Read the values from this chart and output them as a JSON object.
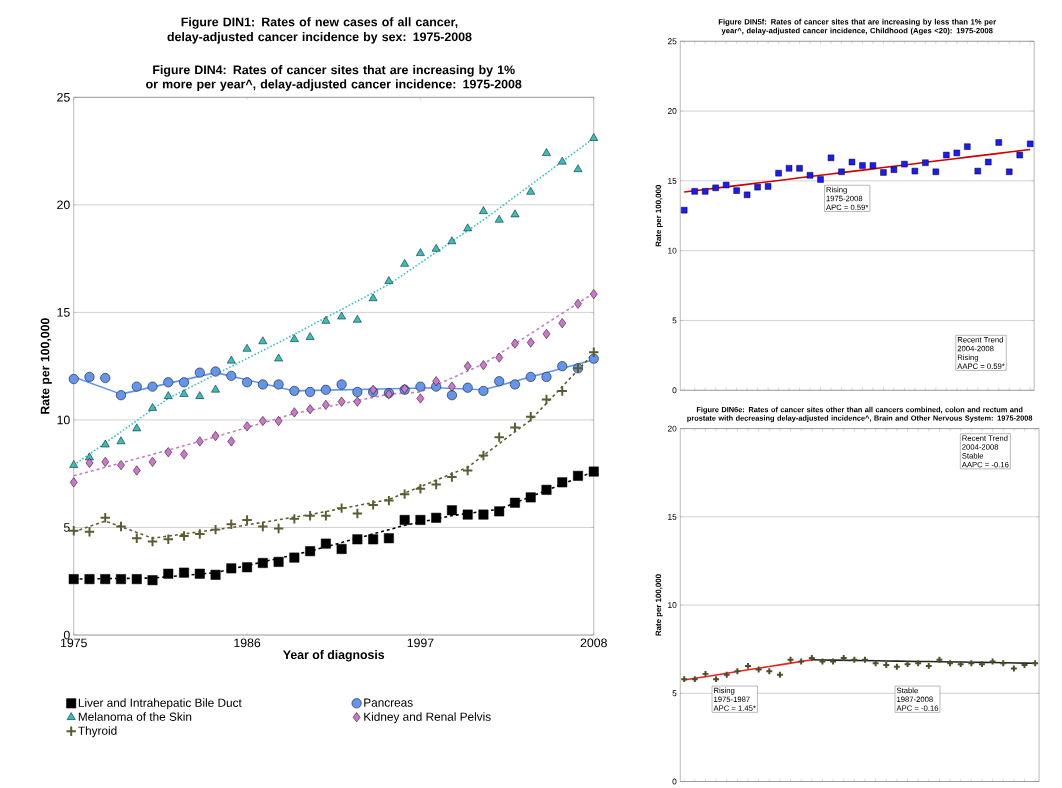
{
  "chart_data": [
    {
      "type": "scatter",
      "title": "Figure DIN4: Rates of cancer sites that are increasing by 1% or more per year^, delay-adjusted cancer incidence: 1975-2008",
      "xlabel": "Year of diagnosis",
      "ylabel": "Rate per 100,000",
      "x": [
        1975,
        1976,
        1977,
        1978,
        1979,
        1980,
        1981,
        1982,
        1983,
        1984,
        1985,
        1986,
        1987,
        1988,
        1989,
        1990,
        1991,
        1992,
        1993,
        1994,
        1995,
        1996,
        1997,
        1998,
        1999,
        2000,
        2001,
        2002,
        2003,
        2004,
        2005,
        2006,
        2007,
        2008
      ],
      "xlim": [
        1975,
        2008
      ],
      "xticks": [
        1975,
        1986,
        1997,
        2008
      ],
      "ylim": [
        0,
        25
      ],
      "yticks": [
        0,
        5,
        10,
        15,
        20,
        25
      ],
      "grid": "y",
      "legend": "bottom",
      "series": [
        {
          "name": "Liver and Intrahepatic Bile Duct",
          "color": "#000000",
          "marker": "square",
          "values": [
            2.6,
            2.6,
            2.6,
            2.6,
            2.6,
            2.55,
            2.85,
            2.9,
            2.85,
            2.8,
            3.1,
            3.15,
            3.35,
            3.4,
            3.6,
            3.9,
            4.25,
            4.0,
            4.45,
            4.45,
            4.5,
            5.35,
            5.35,
            5.45,
            5.8,
            5.6,
            5.6,
            5.75,
            6.15,
            6.4,
            6.75,
            7.1,
            7.4,
            7.6
          ]
        },
        {
          "name": "Pancreas",
          "color": "#6495ed",
          "marker": "circle",
          "values": [
            11.9,
            12.0,
            11.95,
            11.15,
            11.55,
            11.55,
            11.75,
            11.75,
            12.2,
            12.25,
            12.05,
            11.75,
            11.65,
            11.65,
            11.35,
            11.3,
            11.4,
            11.65,
            11.3,
            11.3,
            11.25,
            11.4,
            11.55,
            11.55,
            11.15,
            11.5,
            11.35,
            11.8,
            11.65,
            12.0,
            12.0,
            12.5,
            12.4,
            12.85
          ]
        },
        {
          "name": "Melanoma of the Skin",
          "color": "#33c0c0",
          "marker": "triangle",
          "values": [
            7.9,
            8.25,
            8.85,
            9.0,
            9.6,
            10.55,
            11.1,
            11.2,
            11.1,
            11.4,
            12.75,
            13.3,
            13.65,
            12.85,
            13.75,
            13.85,
            14.6,
            14.8,
            14.65,
            15.65,
            16.45,
            17.25,
            17.75,
            17.95,
            18.3,
            18.9,
            19.7,
            19.3,
            19.55,
            20.6,
            22.4,
            22.0,
            21.65,
            23.1
          ]
        },
        {
          "name": "Kidney and Renal Pelvis",
          "color": "#cc77cc",
          "marker": "diamond",
          "values": [
            7.1,
            8.0,
            8.05,
            7.9,
            7.65,
            8.05,
            8.5,
            8.4,
            9.0,
            9.25,
            9.0,
            9.7,
            9.95,
            9.95,
            10.35,
            10.5,
            10.7,
            10.85,
            10.85,
            11.4,
            11.2,
            11.45,
            11.0,
            11.8,
            11.55,
            12.5,
            12.55,
            12.9,
            13.55,
            13.6,
            14.0,
            14.5,
            15.4,
            15.85
          ]
        },
        {
          "name": "Thyroid",
          "color": "#5c5c30",
          "marker": "cross",
          "values": [
            4.85,
            4.8,
            5.45,
            5.05,
            4.5,
            4.35,
            4.45,
            4.6,
            4.7,
            4.9,
            5.15,
            5.35,
            5.05,
            4.95,
            5.4,
            5.55,
            5.55,
            5.9,
            5.65,
            6.05,
            6.25,
            6.55,
            6.8,
            7.0,
            7.35,
            7.65,
            8.35,
            9.2,
            9.65,
            10.15,
            10.95,
            11.35,
            12.4,
            13.15
          ]
        },
        {
          "type": "line",
          "color": "#000000",
          "line_style": "dashed",
          "x": [
            1975,
            1980,
            1984,
            1990,
            1996,
            1999,
            2002,
            2008
          ],
          "values": [
            2.6,
            2.65,
            2.9,
            3.9,
            5.1,
            5.55,
            5.85,
            7.6
          ]
        },
        {
          "type": "line",
          "color": "#6495ed",
          "line_style": "solid",
          "x": [
            1975,
            1978,
            1984,
            1989,
            1998,
            2001,
            2008
          ],
          "values": [
            12.0,
            11.2,
            12.2,
            11.35,
            11.5,
            11.4,
            12.8
          ]
        },
        {
          "type": "line",
          "color": "#33c0c0",
          "line_style": "dotted",
          "x": [
            1975,
            1981,
            1988,
            1995,
            2001,
            2008
          ],
          "values": [
            7.9,
            11.0,
            13.6,
            16.3,
            19.3,
            23.1
          ]
        },
        {
          "type": "line",
          "color": "#cc77cc",
          "line_style": "dashed",
          "x": [
            1975,
            1983,
            1989,
            1995,
            1997,
            2001,
            2008
          ],
          "values": [
            7.4,
            9.0,
            10.3,
            11.2,
            11.3,
            12.6,
            15.9
          ]
        },
        {
          "type": "line",
          "color": "#5c5c30",
          "line_style": "dashed",
          "x": [
            1975,
            1977,
            1980,
            1985,
            1990,
            1995,
            2000,
            2004,
            2008
          ],
          "values": [
            4.8,
            5.3,
            4.5,
            5.0,
            5.6,
            6.3,
            7.8,
            10.0,
            13.1
          ]
        }
      ]
    },
    {
      "type": "scatter",
      "title": "Figure DIN5f: Rates of cancer sites that are increasing by less than 1% per year^, delay-adjusted cancer incidence, Childhood (Ages <20): 1975-2008",
      "ylabel": "Rate per 100,000",
      "categories": [
        null,
        null,
        null,
        null,
        null,
        null,
        null,
        null,
        null,
        null,
        null,
        null,
        null,
        null,
        null,
        null,
        null,
        null,
        null,
        null,
        null,
        null,
        null,
        null,
        null,
        null,
        null,
        null,
        null,
        null,
        null,
        null,
        null,
        null
      ],
      "ylim": [
        0,
        25
      ],
      "yticks": [
        0,
        5,
        10,
        15,
        20,
        25
      ],
      "grid": "y",
      "series": [
        {
          "color": "#1a1aff",
          "marker": "square",
          "values": [
            12.9,
            14.25,
            14.25,
            14.5,
            14.7,
            14.3,
            14.0,
            14.55,
            14.6,
            15.55,
            15.9,
            15.9,
            15.4,
            15.1,
            16.65,
            15.65,
            16.35,
            16.1,
            16.1,
            15.6,
            15.8,
            16.2,
            15.7,
            16.3,
            15.65,
            16.85,
            17.0,
            17.45,
            15.7,
            16.35,
            17.75,
            15.65,
            16.85,
            17.65
          ]
        },
        {
          "type": "line",
          "color": "#cc0000",
          "line_style": "solid",
          "values": [
            14.2,
            14.29,
            14.38,
            14.48,
            14.57,
            14.66,
            14.75,
            14.85,
            14.94,
            15.03,
            15.12,
            15.22,
            15.31,
            15.4,
            15.49,
            15.59,
            15.68,
            15.77,
            15.86,
            15.96,
            16.05,
            16.14,
            16.23,
            16.33,
            16.42,
            16.51,
            16.6,
            16.7,
            16.79,
            16.88,
            16.97,
            17.07,
            17.16,
            17.25
          ]
        }
      ],
      "annotations": [
        "Rising",
        "1975-2008",
        "APC =  0.59*",
        "Recent Trend",
        "2004-2008",
        "Rising",
        "AAPC =  0.59*"
      ]
    },
    {
      "type": "scatter",
      "title": "Figure DIN6e: Rates of cancer sites other than all cancers combined, colon and rectum and prostate with decreasing delay-adjusted incidence^, Brain and Other Nervous System: 1975-2008",
      "ylabel": "Rate per 100,000",
      "categories": [
        null,
        null,
        null,
        null,
        null,
        null,
        null,
        null,
        null,
        null,
        null,
        null,
        null,
        null,
        null,
        null,
        null,
        null,
        null,
        null,
        null,
        null,
        null,
        null,
        null,
        null,
        null,
        null,
        null,
        null,
        null,
        null,
        null,
        null
      ],
      "ylim": [
        0,
        20
      ],
      "yticks": [
        0,
        5,
        10,
        15,
        20
      ],
      "grid": "y",
      "series": [
        {
          "color": "#4d4d26",
          "marker": "cross",
          "values": [
            5.8,
            5.8,
            6.1,
            5.8,
            6.05,
            6.25,
            6.55,
            6.35,
            6.25,
            6.05,
            6.9,
            6.8,
            7.0,
            6.8,
            6.8,
            7.0,
            6.9,
            6.9,
            6.7,
            6.6,
            6.5,
            6.65,
            6.7,
            6.55,
            6.9,
            6.7,
            6.65,
            6.7,
            6.65,
            6.8,
            6.7,
            6.4,
            6.6,
            6.7
          ]
        },
        {
          "type": "line",
          "color": "#ee2222",
          "line_style": "solid",
          "values": [
            5.75,
            5.85,
            5.94,
            6.04,
            6.13,
            6.23,
            6.33,
            6.42,
            6.52,
            6.61,
            6.71,
            6.8,
            6.9,
            null,
            null,
            null,
            null,
            null,
            null,
            null,
            null,
            null,
            null,
            null,
            null,
            null,
            null,
            null,
            null,
            null,
            null,
            null,
            null,
            null
          ]
        },
        {
          "type": "line",
          "color": "#222222",
          "line_style": "solid",
          "values": [
            null,
            null,
            null,
            null,
            null,
            null,
            null,
            null,
            null,
            null,
            null,
            null,
            6.9,
            6.89,
            6.88,
            6.87,
            6.86,
            6.85,
            6.84,
            6.83,
            6.82,
            6.81,
            6.8,
            6.8,
            6.79,
            6.78,
            6.77,
            6.76,
            6.75,
            6.74,
            6.73,
            6.72,
            6.71,
            6.7
          ]
        }
      ],
      "annotations": [
        "Recent Trend",
        "2004-2008",
        "Stable",
        "AAPC = -0.16",
        "Rising",
        "1975-1987",
        "APC =  1.45*",
        "Stable",
        "1987-2008",
        "APC = -0.16"
      ]
    },
    {
      "type": "other",
      "title": "Figure DIN1: Rates of new cases of all cancer, delay-adjusted cancer incidence by sex: 1975-2008"
    }
  ]
}
